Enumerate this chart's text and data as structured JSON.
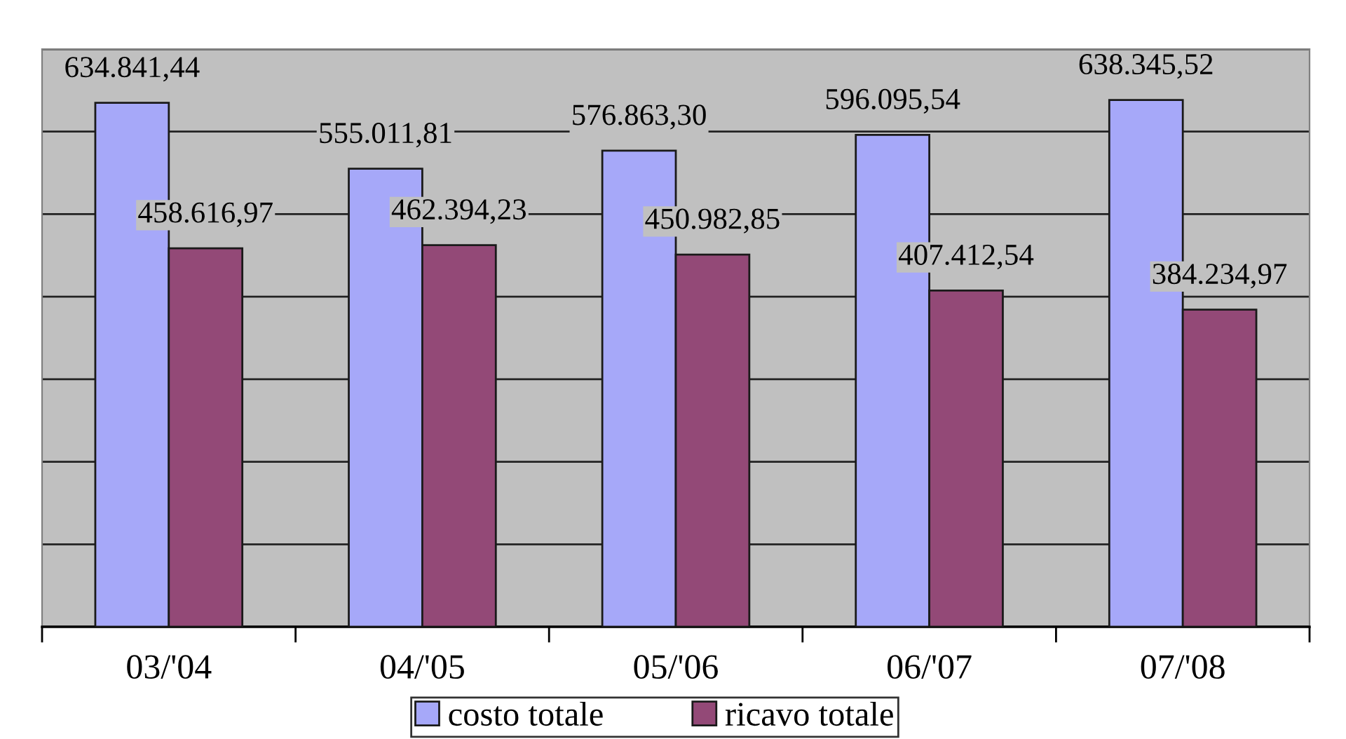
{
  "chart_data": {
    "type": "bar",
    "categories": [
      "03/'04",
      "04/'05",
      "05/'06",
      "06/'07",
      "07/'08"
    ],
    "series": [
      {
        "name": "costo totale",
        "color": "#a6a8f9",
        "values": [
          634841.44,
          555011.81,
          576863.3,
          596095.54,
          638345.52
        ],
        "value_labels": [
          "634.841,44",
          "555.011,81",
          "576.863,30",
          "596.095,54",
          "638.345,52"
        ]
      },
      {
        "name": "ricavo totale",
        "color": "#934977",
        "values": [
          458616.97,
          462394.23,
          450982.85,
          407412.54,
          384234.97
        ],
        "value_labels": [
          "458.616,97",
          "462.394,23",
          "450.982,85",
          "407.412,54",
          "384.234,97"
        ]
      }
    ],
    "ylim": [
      0,
      700000
    ],
    "yticks": [
      {
        "value": 0,
        "label": null
      },
      {
        "value": 100000,
        "label": null
      },
      {
        "value": 200000,
        "label": null
      },
      {
        "value": 300000,
        "label": null
      },
      {
        "value": 400000,
        "label": null
      },
      {
        "value": 500000,
        "label": null
      },
      {
        "value": 600000,
        "label": null
      },
      {
        "value": 700000,
        "label": null
      }
    ],
    "grid": "y",
    "legend": "bottom",
    "tick_labels": "x"
  }
}
